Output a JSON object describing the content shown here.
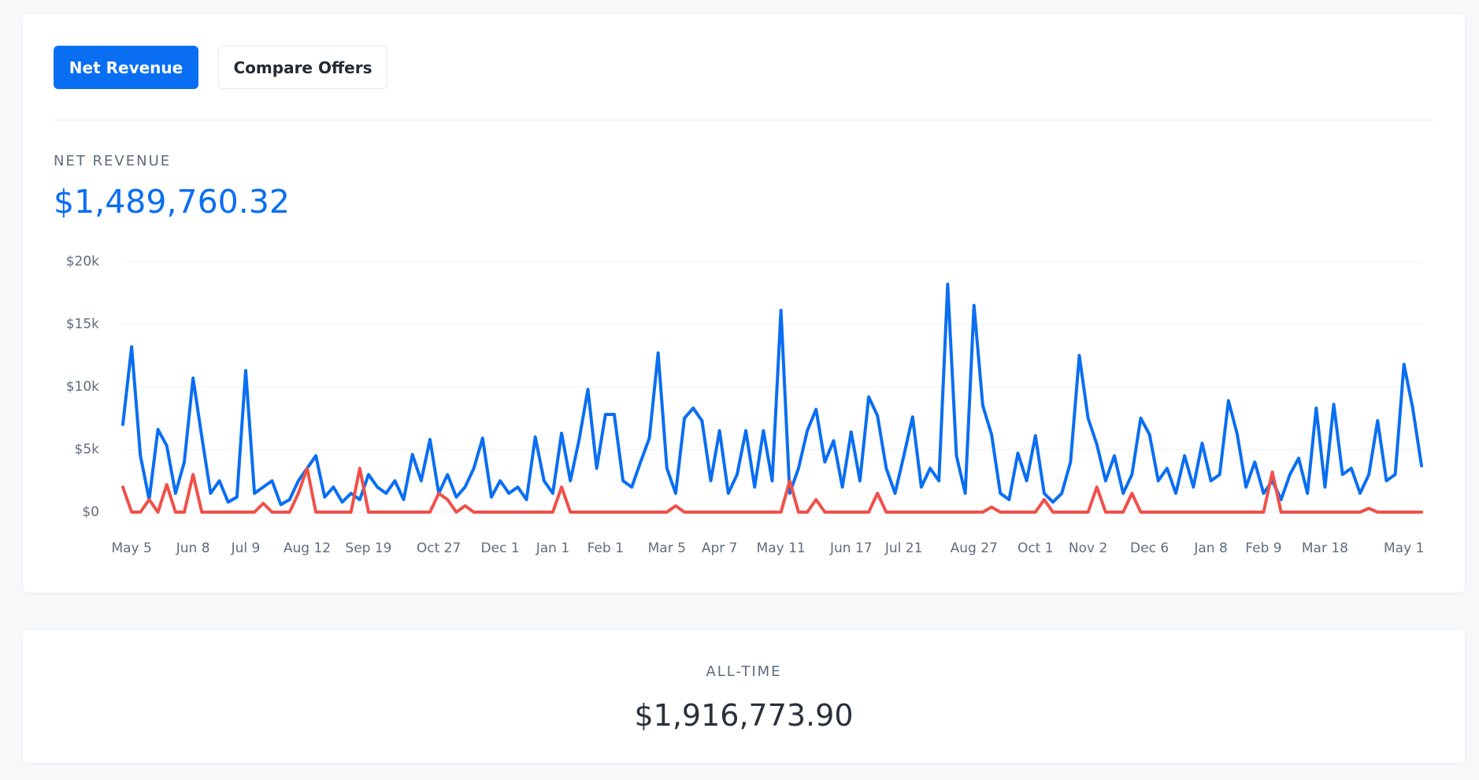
{
  "tabs": [
    "Net Revenue",
    "Compare Offers"
  ],
  "summary": {
    "label": "ALL-TIME",
    "value": "$1,916,773.90"
  },
  "chart_data": {
    "type": "line",
    "title": "NET REVENUE",
    "subtitle": "$1,489,760.32",
    "categories": [
      null,
      "May 5",
      null,
      null,
      null,
      null,
      null,
      null,
      "Jun 8",
      null,
      null,
      null,
      null,
      null,
      "Jul 9",
      null,
      null,
      null,
      null,
      null,
      null,
      "Aug 12",
      null,
      null,
      null,
      null,
      null,
      null,
      "Sep 19",
      null,
      null,
      null,
      null,
      null,
      null,
      null,
      "Oct 27",
      null,
      null,
      null,
      null,
      null,
      null,
      "Dec 1",
      null,
      null,
      null,
      null,
      null,
      "Jan 1",
      null,
      null,
      null,
      null,
      null,
      "Feb 1",
      null,
      null,
      null,
      null,
      null,
      null,
      "Mar 5",
      null,
      null,
      null,
      null,
      null,
      "Apr 7",
      null,
      null,
      null,
      null,
      null,
      null,
      "May 11",
      null,
      null,
      null,
      null,
      null,
      null,
      null,
      "Jun 17",
      null,
      null,
      null,
      null,
      null,
      "Jul 21",
      null,
      null,
      null,
      null,
      null,
      null,
      null,
      "Aug 27",
      null,
      null,
      null,
      null,
      null,
      null,
      "Oct 1",
      null,
      null,
      null,
      null,
      null,
      "Nov 2",
      null,
      null,
      null,
      null,
      null,
      null,
      "Dec 6",
      null,
      null,
      null,
      null,
      null,
      null,
      "Jan 8",
      null,
      null,
      null,
      null,
      null,
      "Feb 9",
      null,
      null,
      null,
      null,
      null,
      null,
      "Mar 18",
      null,
      null,
      null,
      null,
      null,
      null,
      null,
      null,
      "May 1",
      null,
      null
    ],
    "series": [
      {
        "color": "#0a6ef2",
        "values": [
          7000,
          13200,
          4500,
          1000,
          6600,
          5300,
          1500,
          4000,
          10700,
          6000,
          1500,
          2500,
          800,
          1200,
          11300,
          1500,
          2000,
          2500,
          600,
          1000,
          2500,
          3500,
          4500,
          1200,
          2000,
          800,
          1500,
          1000,
          3000,
          2000,
          1500,
          2500,
          1000,
          4600,
          2500,
          5800,
          1500,
          3000,
          1200,
          2000,
          3500,
          5900,
          1200,
          2500,
          1500,
          2000,
          1000,
          6000,
          2500,
          1500,
          6300,
          2500,
          5800,
          9800,
          3500,
          7800,
          7800,
          2500,
          2000,
          4000,
          5900,
          12700,
          3500,
          1500,
          7500,
          8300,
          7300,
          2500,
          6500,
          1500,
          3000,
          6500,
          2000,
          6500,
          2500,
          16100,
          1500,
          3500,
          6500,
          8200,
          4000,
          5700,
          2000,
          6400,
          2500,
          9200,
          7700,
          3500,
          1500,
          4500,
          7600,
          2000,
          3500,
          2500,
          18200,
          4500,
          1500,
          16500,
          8500,
          6200,
          1500,
          1000,
          4700,
          2500,
          6100,
          1500,
          800,
          1500,
          4000,
          12500,
          7500,
          5400,
          2500,
          4500,
          1500,
          3000,
          7500,
          6200,
          2500,
          3500,
          1500,
          4500,
          2000,
          5500,
          2500,
          3000,
          8900,
          6200,
          2000,
          4000,
          1500,
          2500,
          1000,
          3000,
          4300,
          1500,
          8300,
          2000,
          8600,
          3000,
          3500,
          1500,
          3000,
          7300,
          2500,
          3000,
          11800,
          8300,
          3700
        ]
      },
      {
        "color": "#f0504a",
        "values": [
          2000,
          0,
          0,
          1000,
          0,
          2200,
          0,
          0,
          3000,
          0,
          0,
          0,
          0,
          0,
          0,
          0,
          700,
          0,
          0,
          0,
          1500,
          3500,
          0,
          0,
          0,
          0,
          0,
          3500,
          0,
          0,
          0,
          0,
          0,
          0,
          0,
          0,
          1500,
          1000,
          0,
          500,
          0,
          0,
          0,
          0,
          0,
          0,
          0,
          0,
          0,
          0,
          2000,
          0,
          0,
          0,
          0,
          0,
          0,
          0,
          0,
          0,
          0,
          0,
          0,
          500,
          0,
          0,
          0,
          0,
          0,
          0,
          0,
          0,
          0,
          0,
          0,
          0,
          2500,
          0,
          0,
          1000,
          0,
          0,
          0,
          0,
          0,
          0,
          1500,
          0,
          0,
          0,
          0,
          0,
          0,
          0,
          0,
          0,
          0,
          0,
          0,
          400,
          0,
          0,
          0,
          0,
          0,
          1000,
          0,
          0,
          0,
          0,
          0,
          2000,
          0,
          0,
          0,
          1500,
          0,
          0,
          0,
          0,
          0,
          0,
          0,
          0,
          0,
          0,
          0,
          0,
          0,
          0,
          0,
          3200,
          0,
          0,
          0,
          0,
          0,
          0,
          0,
          0,
          0,
          0,
          300,
          0,
          0,
          0,
          0,
          0,
          0
        ]
      }
    ],
    "ylim": [
      0,
      20000
    ],
    "yticks": [
      {
        "value": 0,
        "label": "$0"
      },
      {
        "value": 5000,
        "label": "$5k"
      },
      {
        "value": 10000,
        "label": "$10k"
      },
      {
        "value": 15000,
        "label": "$15k"
      },
      {
        "value": 20000,
        "label": "$20k"
      }
    ],
    "grid": true
  }
}
